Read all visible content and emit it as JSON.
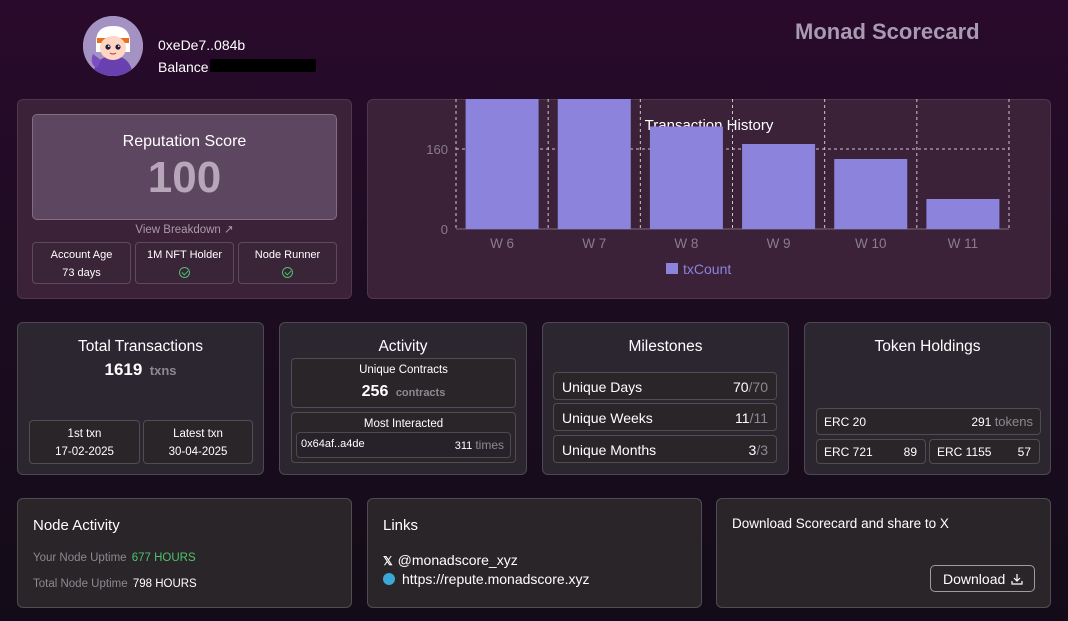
{
  "header": {
    "address": "0xeDe7..084b",
    "balance_label": "Balance",
    "brand": "Monad Scorecard",
    "avatar_icon": "cartoon-avatar-icon"
  },
  "reputation": {
    "title": "Reputation Score",
    "score": "100",
    "view_breakdown": "View Breakdown ↗",
    "account_age_label": "Account Age",
    "account_age_value": "73 days",
    "nft_holder_label": "1M NFT Holder",
    "node_runner_label": "Node Runner"
  },
  "chart_data": {
    "type": "bar",
    "title": "Transaction History",
    "categories": [
      "W 6",
      "W 7",
      "W 8",
      "W 9",
      "W 10",
      "W 11"
    ],
    "series": [
      {
        "name": "txCount",
        "values": [
          275,
          335,
          205,
          170,
          140,
          60
        ],
        "color": "#8c84dc"
      }
    ],
    "yticks": [
      0,
      160,
      320
    ],
    "ylim": [
      0,
      380
    ],
    "grid": true,
    "legend": "bottom"
  },
  "total_tx": {
    "title": "Total Transactions",
    "count": "1619",
    "unit": "txns",
    "first_label": "1st txn",
    "first_date": "17-02-2025",
    "latest_label": "Latest txn",
    "latest_date": "30-04-2025"
  },
  "activity": {
    "title": "Activity",
    "unique_contracts_label": "Unique Contracts",
    "unique_contracts_value": "256",
    "unique_contracts_unit": "contracts",
    "most_interacted_label": "Most Interacted",
    "most_interacted_addr": "0x64af..a4de",
    "most_interacted_count": "311",
    "most_interacted_unit": "times"
  },
  "milestones": {
    "title": "Milestones",
    "rows": [
      {
        "label": "Unique Days",
        "value": "70",
        "total": "/70"
      },
      {
        "label": "Unique Weeks",
        "value": "11",
        "total": "/11"
      },
      {
        "label": "Unique Months",
        "value": "3",
        "total": "/3"
      }
    ]
  },
  "tokens": {
    "title": "Token Holdings",
    "erc20_label": "ERC 20",
    "erc20_value": "291",
    "erc20_unit": "tokens",
    "erc721_label": "ERC 721",
    "erc721_value": "89",
    "erc1155_label": "ERC 1155",
    "erc1155_value": "57"
  },
  "node": {
    "title": "Node Activity",
    "your_label": "Your Node Uptime",
    "your_value": "677 HOURS",
    "total_label": "Total Node Uptime",
    "total_value": "798 HOURS",
    "accent": "#4cc36a"
  },
  "links": {
    "title": "Links",
    "x_handle": "@monadscore_xyz",
    "website": "https://repute.monadscore.xyz"
  },
  "download": {
    "text": "Download Scorecard and share to X",
    "button": "Download"
  }
}
